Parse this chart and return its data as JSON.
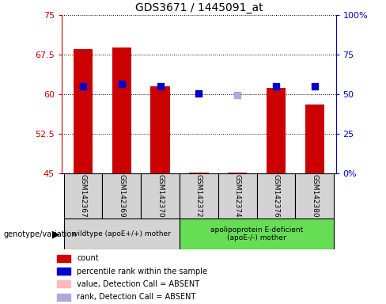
{
  "title": "GDS3671 / 1445091_at",
  "samples": [
    "GSM142367",
    "GSM142369",
    "GSM142370",
    "GSM142372",
    "GSM142374",
    "GSM142376",
    "GSM142380"
  ],
  "red_values": [
    68.5,
    68.8,
    61.5,
    45.2,
    45.2,
    61.2,
    58.0
  ],
  "blue_values": [
    61.5,
    62.0,
    61.5,
    60.2,
    null,
    61.5,
    61.5
  ],
  "blue_absent": [
    null,
    null,
    null,
    null,
    59.8,
    null,
    null
  ],
  "ylim_left": [
    45,
    75
  ],
  "ylim_right": [
    0,
    100
  ],
  "yticks_left": [
    45,
    52.5,
    60,
    67.5,
    75
  ],
  "yticks_right": [
    0,
    25,
    50,
    75,
    100
  ],
  "ytick_labels_left": [
    "45",
    "52.5",
    "60",
    "67.5",
    "75"
  ],
  "ytick_labels_right": [
    "0%",
    "25",
    "50",
    "75",
    "100%"
  ],
  "group1_label": "wildtype (apoE+/+) mother",
  "group2_label": "apolipoprotein E-deficient\n(apoE-/-) mother",
  "genotype_label": "genotype/variation",
  "bar_color": "#cc0000",
  "dot_color": "#0000cc",
  "absent_bar_color": "#ffbbbb",
  "absent_dot_color": "#aaaadd",
  "bar_width": 0.5,
  "dot_size": 35,
  "group1_bg": "#d3d3d3",
  "group2_bg": "#66dd55",
  "left_tick_color": "#cc0000",
  "right_tick_color": "#0000cc",
  "legend_labels": [
    "count",
    "percentile rank within the sample",
    "value, Detection Call = ABSENT",
    "rank, Detection Call = ABSENT"
  ],
  "legend_colors": [
    "#cc0000",
    "#0000cc",
    "#ffbbbb",
    "#aaaadd"
  ]
}
